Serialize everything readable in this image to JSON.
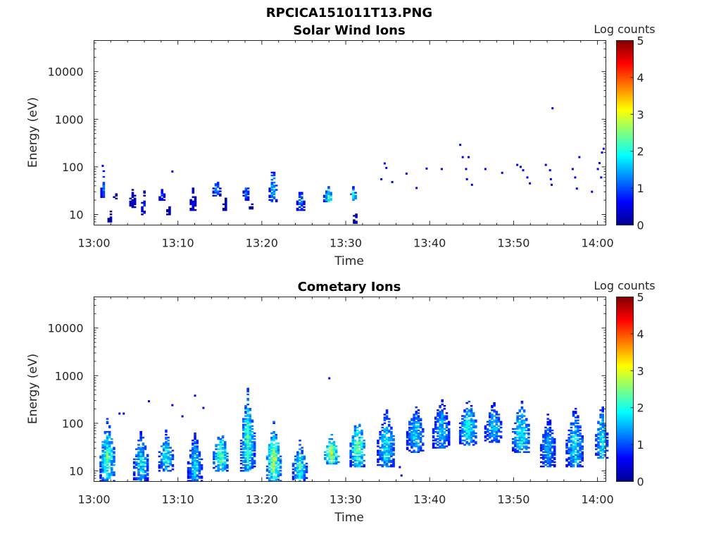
{
  "figure": {
    "title": "RPCICA151011T13.PNG"
  },
  "colormap": [
    "#00008f",
    "#0000ff",
    "#007fff",
    "#00ffff",
    "#7fff7f",
    "#ffff00",
    "#ff7f00",
    "#ff0000",
    "#7f0000"
  ],
  "chart_data": [
    {
      "type": "heatmap",
      "title": "Solar Wind Ions",
      "xlabel": "Time",
      "ylabel": "Energy (eV)",
      "x_ticks": [
        "13:00",
        "13:10",
        "13:20",
        "13:30",
        "13:40",
        "13:50",
        "14:00"
      ],
      "xlim_minutes_after_13": [
        0,
        61
      ],
      "y_ticks": [
        "10",
        "100",
        "1000",
        "10000"
      ],
      "ylim": [
        6,
        45000
      ],
      "y_scale": "log",
      "colorbar": {
        "label": "Log counts",
        "ticks": [
          "0",
          "1",
          "2",
          "3",
          "4",
          "5"
        ],
        "range": [
          0,
          5
        ]
      },
      "bursts": [
        {
          "t": 1.0,
          "w": 0.5,
          "e": [
            22,
            95
          ],
          "peak": 1.3
        },
        {
          "t": 1.8,
          "w": 0.4,
          "e": [
            6,
            14
          ],
          "peak": 0.2
        },
        {
          "t": 2.4,
          "w": 0.3,
          "e": [
            20,
            35
          ],
          "peak": 0.3
        },
        {
          "t": 4.5,
          "w": 0.6,
          "e": [
            14,
            40
          ],
          "peak": 0.4
        },
        {
          "t": 5.8,
          "w": 0.4,
          "e": [
            10,
            40
          ],
          "peak": 1.0
        },
        {
          "t": 8.0,
          "w": 0.6,
          "e": [
            20,
            40
          ],
          "peak": 1.0
        },
        {
          "t": 8.8,
          "w": 0.4,
          "e": [
            10,
            20
          ],
          "peak": 0.3
        },
        {
          "t": 11.7,
          "w": 0.6,
          "e": [
            12,
            40
          ],
          "peak": 0.6
        },
        {
          "t": 14.5,
          "w": 0.8,
          "e": [
            25,
            55
          ],
          "peak": 1.6
        },
        {
          "t": 15.5,
          "w": 0.4,
          "e": [
            12,
            25
          ],
          "peak": 0.4
        },
        {
          "t": 18.0,
          "w": 0.6,
          "e": [
            20,
            60
          ],
          "peak": 1.3
        },
        {
          "t": 18.6,
          "w": 0.3,
          "e": [
            12,
            22
          ],
          "peak": 0.3
        },
        {
          "t": 21.2,
          "w": 0.8,
          "e": [
            18,
            110
          ],
          "peak": 1.8
        },
        {
          "t": 24.5,
          "w": 0.8,
          "e": [
            12,
            40
          ],
          "peak": 1.4
        },
        {
          "t": 27.8,
          "w": 1.0,
          "e": [
            18,
            40
          ],
          "peak": 2.4
        },
        {
          "t": 30.8,
          "w": 0.6,
          "e": [
            20,
            40
          ],
          "peak": 2.3
        },
        {
          "t": 31.0,
          "w": 0.3,
          "e": [
            6,
            18
          ],
          "peak": 0.4
        }
      ],
      "dots": [
        [
          1.0,
          105
        ],
        [
          9.3,
          80
        ],
        [
          34.6,
          118
        ],
        [
          34.8,
          95
        ],
        [
          34.2,
          55
        ],
        [
          35.5,
          48
        ],
        [
          37.2,
          72
        ],
        [
          38.4,
          36
        ],
        [
          39.6,
          92
        ],
        [
          41.4,
          90
        ],
        [
          43.6,
          290
        ],
        [
          43.9,
          160
        ],
        [
          44.6,
          160
        ],
        [
          44.3,
          90
        ],
        [
          44.4,
          55
        ],
        [
          45.0,
          42
        ],
        [
          46.6,
          90
        ],
        [
          48.6,
          75
        ],
        [
          50.4,
          110
        ],
        [
          50.8,
          100
        ],
        [
          51.1,
          85
        ],
        [
          51.6,
          60
        ],
        [
          51.9,
          45
        ],
        [
          53.8,
          110
        ],
        [
          54.3,
          85
        ],
        [
          54.4,
          55
        ],
        [
          54.5,
          42
        ],
        [
          54.6,
          1700
        ],
        [
          57.0,
          90
        ],
        [
          57.3,
          60
        ],
        [
          57.5,
          35
        ],
        [
          57.8,
          160
        ],
        [
          59.3,
          30
        ],
        [
          60.0,
          90
        ],
        [
          60.2,
          120
        ],
        [
          60.5,
          200
        ],
        [
          60.7,
          240
        ],
        [
          60.4,
          60
        ]
      ]
    },
    {
      "type": "heatmap",
      "title": "Cometary Ions",
      "xlabel": "Time",
      "ylabel": "Energy (eV)",
      "x_ticks": [
        "13:00",
        "13:10",
        "13:20",
        "13:30",
        "13:40",
        "13:50",
        "14:00"
      ],
      "xlim_minutes_after_13": [
        0,
        61
      ],
      "y_ticks": [
        "10",
        "100",
        "1000",
        "10000"
      ],
      "ylim": [
        6,
        45000
      ],
      "y_scale": "log",
      "colorbar": {
        "label": "Log counts",
        "ticks": [
          "0",
          "1",
          "2",
          "3",
          "4",
          "5"
        ],
        "range": [
          0,
          5
        ]
      },
      "bursts": [
        {
          "t": 1.5,
          "w": 1.7,
          "e": [
            6,
            140
          ],
          "peak": 2.4
        },
        {
          "t": 5.5,
          "w": 1.7,
          "e": [
            6,
            75
          ],
          "peak": 2.0
        },
        {
          "t": 8.5,
          "w": 1.7,
          "e": [
            10,
            80
          ],
          "peak": 2.1
        },
        {
          "t": 11.9,
          "w": 1.6,
          "e": [
            6,
            70
          ],
          "peak": 1.9
        },
        {
          "t": 15.0,
          "w": 1.7,
          "e": [
            10,
            80
          ],
          "peak": 2.5
        },
        {
          "t": 18.2,
          "w": 1.6,
          "e": [
            10,
            550
          ],
          "peak": 2.4
        },
        {
          "t": 21.3,
          "w": 1.6,
          "e": [
            6,
            110
          ],
          "peak": 2.9
        },
        {
          "t": 24.4,
          "w": 1.6,
          "e": [
            6,
            45
          ],
          "peak": 2.2
        },
        {
          "t": 28.2,
          "w": 1.6,
          "e": [
            14,
            65
          ],
          "peak": 3.0
        },
        {
          "t": 31.3,
          "w": 1.7,
          "e": [
            12,
            160
          ],
          "peak": 2.6
        },
        {
          "t": 34.7,
          "w": 2.0,
          "e": [
            12,
            220
          ],
          "peak": 2.0
        },
        {
          "t": 38.2,
          "w": 2.0,
          "e": [
            25,
            300
          ],
          "peak": 1.9
        },
        {
          "t": 41.3,
          "w": 2.0,
          "e": [
            30,
            380
          ],
          "peak": 1.7
        },
        {
          "t": 44.5,
          "w": 2.0,
          "e": [
            35,
            380
          ],
          "peak": 2.1
        },
        {
          "t": 47.5,
          "w": 2.0,
          "e": [
            40,
            300
          ],
          "peak": 1.8
        },
        {
          "t": 50.8,
          "w": 2.0,
          "e": [
            25,
            320
          ],
          "peak": 2.2
        },
        {
          "t": 54.0,
          "w": 1.7,
          "e": [
            12,
            170
          ],
          "peak": 1.7
        },
        {
          "t": 57.2,
          "w": 2.0,
          "e": [
            12,
            250
          ],
          "peak": 2.0
        },
        {
          "t": 60.4,
          "w": 1.4,
          "e": [
            18,
            280
          ],
          "peak": 2.1
        }
      ],
      "dots": [
        [
          3.0,
          160
        ],
        [
          3.5,
          160
        ],
        [
          6.5,
          290
        ],
        [
          9.3,
          240
        ],
        [
          12.0,
          380
        ],
        [
          13.0,
          210
        ],
        [
          28.0,
          880
        ],
        [
          36.6,
          8
        ],
        [
          36.4,
          12
        ],
        [
          10.5,
          140
        ]
      ]
    }
  ]
}
